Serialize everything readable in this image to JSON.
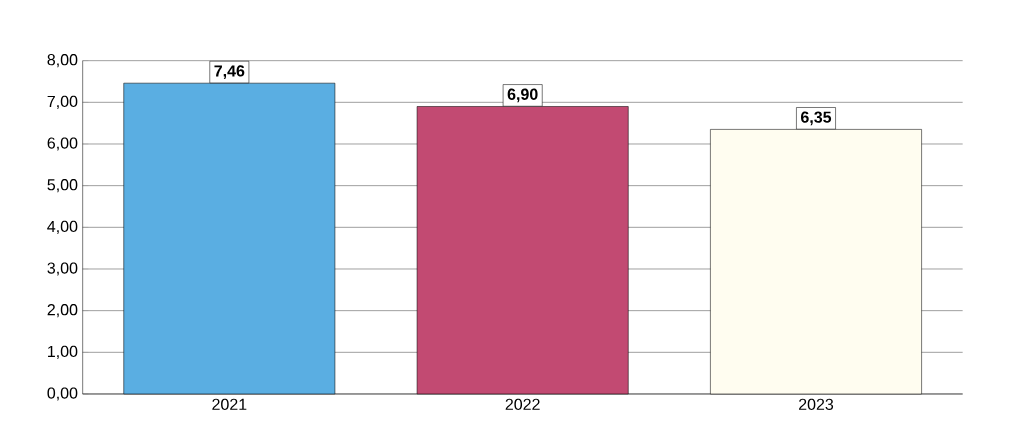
{
  "chart_data": {
    "type": "bar",
    "categories": [
      "2021",
      "2022",
      "2023"
    ],
    "values": [
      7.46,
      6.9,
      6.35
    ],
    "colors": [
      "#5aaee2",
      "#c24a72",
      "#fffdf0"
    ],
    "value_labels": [
      "7,46",
      "6,90",
      "6,35"
    ],
    "ylim": [
      0,
      8
    ],
    "yticks": [
      {
        "value": 0,
        "label": "0,00"
      },
      {
        "value": 1,
        "label": "1,00"
      },
      {
        "value": 2,
        "label": "2,00"
      },
      {
        "value": 3,
        "label": "3,00"
      },
      {
        "value": 4,
        "label": "4,00"
      },
      {
        "value": 5,
        "label": "5,00"
      },
      {
        "value": 6,
        "label": "6,00"
      },
      {
        "value": 7,
        "label": "7,00"
      },
      {
        "value": 8,
        "label": "8,00"
      }
    ],
    "grid": "y"
  }
}
